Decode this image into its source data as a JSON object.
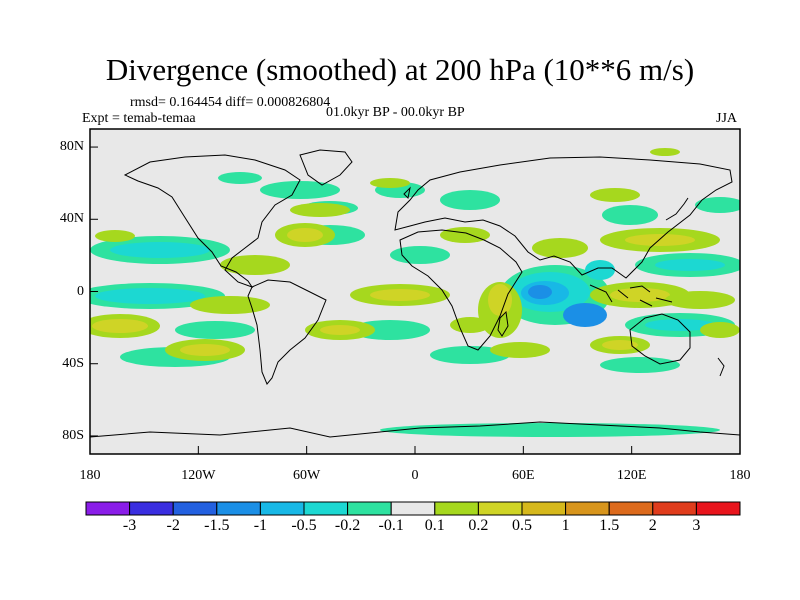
{
  "title": "Divergence (smoothed) at 200 hPa (10**6 m/s)",
  "stats": "rmsd= 0.164454 diff= 0.000826804",
  "experiment": "Expt = temab-temaa",
  "period": "01.0kyr BP - 00.0kyr BP",
  "season": "JJA",
  "axes": {
    "lat_ticks": [
      {
        "lat": 80,
        "label": "80N"
      },
      {
        "lat": 40,
        "label": "40N"
      },
      {
        "lat": 0,
        "label": "0"
      },
      {
        "lat": -40,
        "label": "40S"
      },
      {
        "lat": -80,
        "label": "80S"
      }
    ],
    "lon_ticks": [
      {
        "lon": -180,
        "label": "180"
      },
      {
        "lon": -120,
        "label": "120W"
      },
      {
        "lon": -60,
        "label": "60W"
      },
      {
        "lon": 0,
        "label": "0"
      },
      {
        "lon": 60,
        "label": "60E"
      },
      {
        "lon": 120,
        "label": "120E"
      },
      {
        "lon": 180,
        "label": "180"
      }
    ],
    "lat_range": [
      -90,
      90
    ],
    "lon_range": [
      -180,
      180
    ]
  },
  "colorbar": {
    "colors": [
      "#8a1de8",
      "#3a2ee0",
      "#2360e0",
      "#1b8fe6",
      "#18b8e6",
      "#1cd8d2",
      "#2ee2a0",
      "#e8e8e8",
      "#a6d81e",
      "#cfd426",
      "#d6b81c",
      "#d8951c",
      "#dc6a1c",
      "#e03c1c",
      "#e8141c"
    ],
    "labels": [
      "-3",
      "-2",
      "-1.5",
      "-1",
      "-0.5",
      "-0.2",
      "-0.1",
      "0.1",
      "0.2",
      "0.5",
      "1",
      "1.5",
      "2",
      "3"
    ]
  }
}
